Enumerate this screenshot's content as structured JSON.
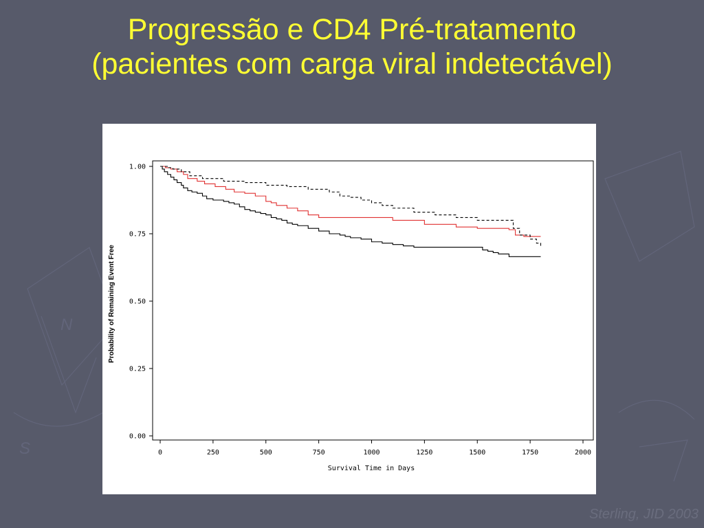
{
  "slide": {
    "title_line1": "Progressão e CD4 Pré-tratamento",
    "title_line2": "(pacientes com carga viral indetectável)",
    "credit": "Sterling, JID 2003",
    "colors": {
      "background": "#575a6a",
      "title": "#ffff33"
    }
  },
  "chart_data": {
    "type": "line",
    "step": true,
    "xlabel": "Survival Time in Days",
    "ylabel": "Probability of Remaining Event Free",
    "xlim": [
      0,
      2000
    ],
    "ylim": [
      0,
      1
    ],
    "x_ticks": [
      "0",
      "250",
      "500",
      "750",
      "1000",
      "1250",
      "1500",
      "1750",
      "2000"
    ],
    "y_ticks": [
      "0.00",
      "0.25",
      "0.50",
      "0.75",
      "1.00"
    ],
    "grid": false,
    "legend": "none",
    "series": [
      {
        "color": "#000000",
        "style": "solid",
        "x": [
          0,
          10,
          20,
          35,
          50,
          65,
          80,
          100,
          110,
          130,
          150,
          175,
          200,
          220,
          250,
          300,
          325,
          350,
          375,
          400,
          425,
          450,
          475,
          500,
          525,
          550,
          575,
          600,
          625,
          650,
          700,
          750,
          800,
          850,
          875,
          900,
          950,
          1000,
          1050,
          1100,
          1150,
          1200,
          1300,
          1400,
          1500,
          1525,
          1550,
          1575,
          1600,
          1650,
          1700,
          1750,
          1800
        ],
        "y": [
          1.0,
          0.99,
          0.98,
          0.97,
          0.96,
          0.95,
          0.94,
          0.93,
          0.92,
          0.91,
          0.905,
          0.9,
          0.89,
          0.88,
          0.875,
          0.87,
          0.865,
          0.86,
          0.85,
          0.84,
          0.835,
          0.83,
          0.825,
          0.82,
          0.81,
          0.805,
          0.8,
          0.79,
          0.785,
          0.78,
          0.77,
          0.76,
          0.75,
          0.745,
          0.74,
          0.735,
          0.73,
          0.72,
          0.715,
          0.71,
          0.705,
          0.7,
          0.7,
          0.7,
          0.7,
          0.69,
          0.685,
          0.68,
          0.675,
          0.665,
          0.665,
          0.665,
          0.665
        ]
      },
      {
        "color": "#e03030",
        "style": "solid",
        "x": [
          0,
          25,
          50,
          80,
          110,
          130,
          175,
          210,
          260,
          310,
          350,
          400,
          450,
          500,
          525,
          550,
          600,
          650,
          700,
          750,
          800,
          1000,
          1100,
          1250,
          1400,
          1500,
          1650,
          1680,
          1720,
          1750,
          1800
        ],
        "y": [
          1.0,
          0.995,
          0.99,
          0.98,
          0.97,
          0.955,
          0.945,
          0.935,
          0.925,
          0.915,
          0.905,
          0.9,
          0.89,
          0.87,
          0.865,
          0.855,
          0.845,
          0.835,
          0.82,
          0.81,
          0.81,
          0.81,
          0.8,
          0.785,
          0.775,
          0.77,
          0.765,
          0.745,
          0.74,
          0.74,
          0.74
        ]
      },
      {
        "color": "#000000",
        "style": "dashed",
        "x": [
          0,
          20,
          40,
          60,
          100,
          140,
          200,
          300,
          400,
          500,
          600,
          700,
          800,
          850,
          900,
          950,
          1000,
          1050,
          1100,
          1200,
          1300,
          1400,
          1500,
          1650,
          1670,
          1700,
          1750,
          1780,
          1800
        ],
        "y": [
          1.0,
          1.0,
          0.995,
          0.99,
          0.98,
          0.965,
          0.955,
          0.945,
          0.94,
          0.93,
          0.925,
          0.915,
          0.905,
          0.89,
          0.885,
          0.875,
          0.865,
          0.855,
          0.845,
          0.83,
          0.82,
          0.81,
          0.8,
          0.8,
          0.77,
          0.745,
          0.73,
          0.715,
          0.7
        ]
      }
    ]
  }
}
